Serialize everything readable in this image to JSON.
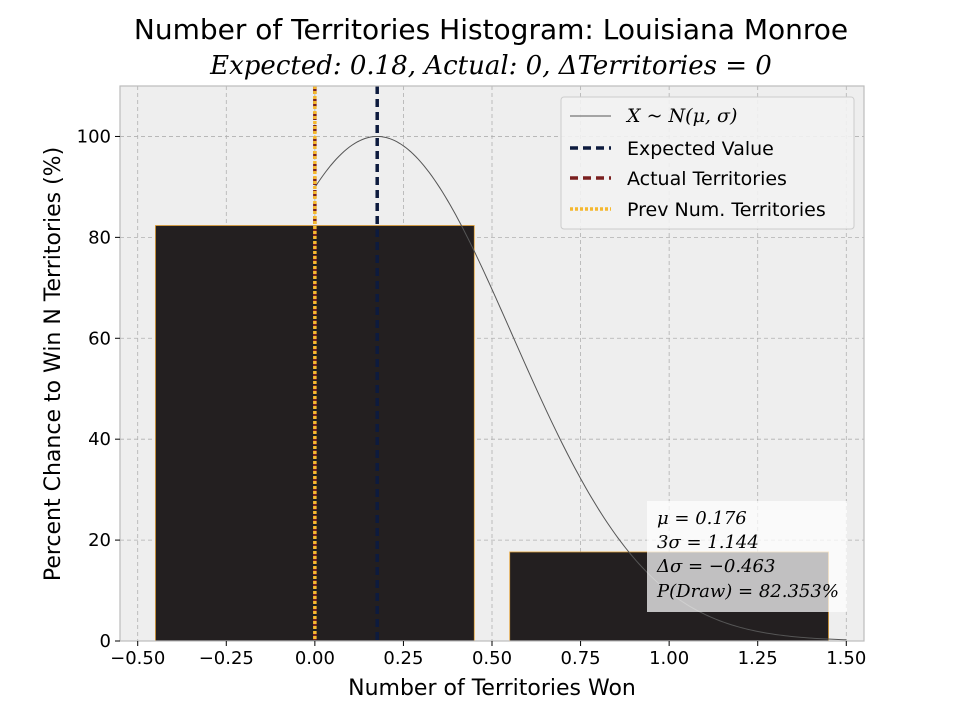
{
  "chart_data": {
    "type": "bar",
    "title": "Number of Territories Histogram: Louisiana Monroe",
    "subtitle": "Expected: 0.18, Actual: 0, ΔTerritories = 0",
    "xlabel": "Number of Territories Won",
    "ylabel": "Percent Chance to Win N Territories (%)",
    "xlim": [
      -0.55,
      1.55
    ],
    "ylim": [
      0,
      110
    ],
    "grid": true,
    "x_ticks": [
      -0.5,
      -0.25,
      0.0,
      0.25,
      0.5,
      0.75,
      1.0,
      1.25,
      1.5
    ],
    "x_tick_labels": [
      "−0.50",
      "−0.25",
      "0.00",
      "0.25",
      "0.50",
      "0.75",
      "1.00",
      "1.25",
      "1.50"
    ],
    "y_ticks": [
      0,
      20,
      40,
      60,
      80,
      100
    ],
    "y_tick_labels": [
      "0",
      "20",
      "40",
      "60",
      "80",
      "100"
    ],
    "bars": [
      {
        "x": 0,
        "width": 0.9,
        "value": 82.353
      },
      {
        "x": 1,
        "width": 0.9,
        "value": 17.647
      }
    ],
    "normal_curve": {
      "mu": 0.176,
      "sigma": 0.3813,
      "scale": 100
    },
    "vertical_lines": [
      {
        "name": "Expected Value",
        "x": 0.176,
        "color": "#0d1b3e",
        "style": "dashed"
      },
      {
        "name": "Actual Territories",
        "x": 0,
        "color": "#7a1f1f",
        "style": "dashed"
      },
      {
        "name": "Prev Num. Territories",
        "x": 0,
        "color": "#f5b82e",
        "style": "dotted"
      }
    ],
    "legend": {
      "position": "top-right",
      "entries": [
        {
          "label": "X ~ N(μ, σ)",
          "color": "#555555",
          "style": "solid"
        },
        {
          "label": "Expected Value",
          "color": "#0d1b3e",
          "style": "dashed"
        },
        {
          "label": "Actual Territories",
          "color": "#7a1f1f",
          "style": "dashed"
        },
        {
          "label": "Prev Num. Territories",
          "color": "#f5b82e",
          "style": "dotted"
        }
      ]
    },
    "stats": [
      "μ = 0.176",
      "3σ = 1.144",
      "Δσ = −0.463",
      "P(Draw) = 82.353%"
    ],
    "colors": {
      "bar": "#231f20",
      "bar_edge": "#e3a33a",
      "plot_bg": "#eeeeee",
      "grid": "#b0b0b0",
      "curve": "#555555"
    }
  }
}
